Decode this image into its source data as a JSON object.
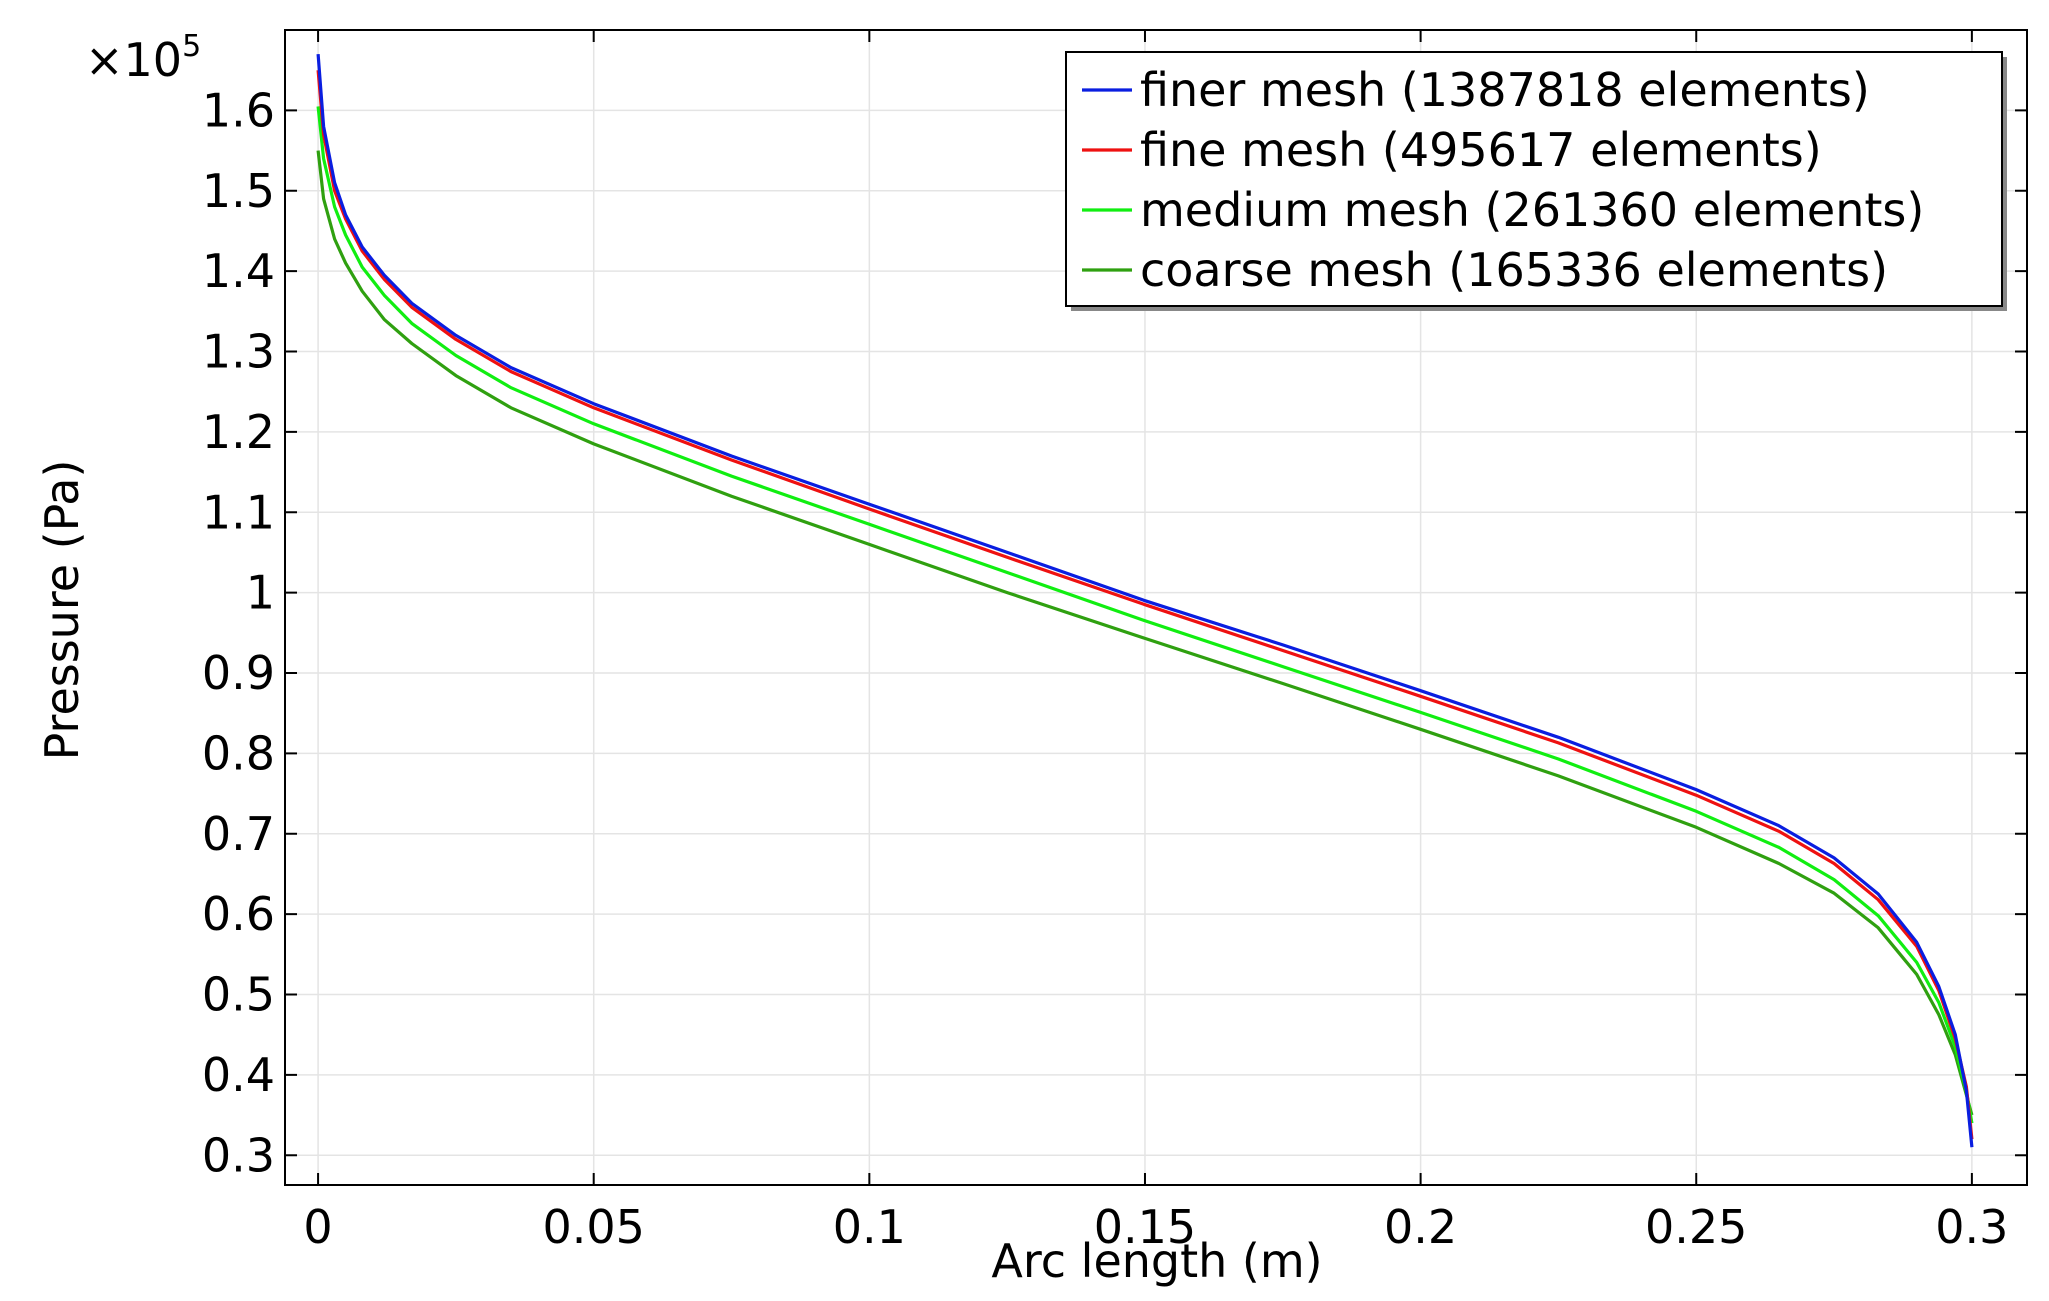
{
  "chart_data": {
    "type": "line",
    "title": "",
    "xlabel": "Arc length (m)",
    "ylabel": "Pressure (Pa)",
    "y_multiplier_base": "×10",
    "y_multiplier_exp": "5",
    "xlim": [
      -0.006,
      0.31
    ],
    "ylim": [
      0.263,
      1.7
    ],
    "x_ticks": [
      0,
      0.05,
      0.1,
      0.15,
      0.2,
      0.25,
      0.3
    ],
    "x_tick_labels": [
      "0",
      "0.05",
      "0.1",
      "0.15",
      "0.2",
      "0.25",
      "0.3"
    ],
    "y_ticks": [
      0.3,
      0.4,
      0.5,
      0.6,
      0.7,
      0.8,
      0.9,
      1.0,
      1.1,
      1.2,
      1.3,
      1.4,
      1.5,
      1.6
    ],
    "y_tick_labels": [
      "0.3",
      "0.4",
      "0.5",
      "0.6",
      "0.7",
      "0.8",
      "0.9",
      "1",
      "1.1",
      "1.2",
      "1.3",
      "1.4",
      "1.5",
      "1.6"
    ],
    "grid": true,
    "legend_position": "top-right",
    "series": [
      {
        "name": "finer mesh (1387818 elements)",
        "color": "#0a1ee0",
        "x": [
          0,
          0.001,
          0.003,
          0.005,
          0.008,
          0.012,
          0.017,
          0.025,
          0.035,
          0.05,
          0.075,
          0.1,
          0.125,
          0.15,
          0.175,
          0.2,
          0.225,
          0.25,
          0.265,
          0.275,
          0.283,
          0.29,
          0.294,
          0.297,
          0.299,
          0.3
        ],
        "y": [
          1.67,
          1.58,
          1.51,
          1.47,
          1.43,
          1.395,
          1.36,
          1.32,
          1.28,
          1.235,
          1.17,
          1.11,
          1.05,
          0.99,
          0.935,
          0.878,
          0.82,
          0.755,
          0.71,
          0.67,
          0.625,
          0.565,
          0.51,
          0.45,
          0.38,
          0.31
        ]
      },
      {
        "name": "fine mesh (495617 elements)",
        "color": "#ee1111",
        "x": [
          0,
          0.001,
          0.003,
          0.005,
          0.008,
          0.012,
          0.017,
          0.025,
          0.035,
          0.05,
          0.075,
          0.1,
          0.125,
          0.15,
          0.175,
          0.2,
          0.225,
          0.25,
          0.265,
          0.275,
          0.283,
          0.29,
          0.294,
          0.297,
          0.299,
          0.3
        ],
        "y": [
          1.65,
          1.57,
          1.5,
          1.465,
          1.425,
          1.39,
          1.355,
          1.315,
          1.275,
          1.23,
          1.165,
          1.104,
          1.044,
          0.985,
          0.928,
          0.871,
          0.813,
          0.748,
          0.703,
          0.663,
          0.618,
          0.56,
          0.505,
          0.445,
          0.385,
          0.32
        ]
      },
      {
        "name": "medium mesh (261360 elements)",
        "color": "#11ee11",
        "x": [
          0,
          0.001,
          0.003,
          0.005,
          0.008,
          0.012,
          0.017,
          0.025,
          0.035,
          0.05,
          0.075,
          0.1,
          0.125,
          0.15,
          0.175,
          0.2,
          0.225,
          0.25,
          0.265,
          0.275,
          0.283,
          0.29,
          0.294,
          0.297,
          0.299,
          0.3
        ],
        "y": [
          1.605,
          1.54,
          1.48,
          1.445,
          1.405,
          1.37,
          1.335,
          1.295,
          1.255,
          1.21,
          1.145,
          1.085,
          1.025,
          0.965,
          0.908,
          0.851,
          0.793,
          0.728,
          0.683,
          0.643,
          0.598,
          0.54,
          0.49,
          0.435,
          0.38,
          0.34
        ]
      },
      {
        "name": "coarse mesh (165336 elements)",
        "color": "#2fa010",
        "x": [
          0,
          0.001,
          0.003,
          0.005,
          0.008,
          0.012,
          0.017,
          0.025,
          0.035,
          0.05,
          0.075,
          0.1,
          0.125,
          0.15,
          0.175,
          0.2,
          0.225,
          0.25,
          0.265,
          0.275,
          0.283,
          0.29,
          0.294,
          0.297,
          0.299,
          0.3
        ],
        "y": [
          1.55,
          1.49,
          1.44,
          1.41,
          1.375,
          1.34,
          1.31,
          1.27,
          1.23,
          1.185,
          1.12,
          1.06,
          1.0,
          0.943,
          0.887,
          0.83,
          0.772,
          0.708,
          0.663,
          0.626,
          0.583,
          0.525,
          0.475,
          0.425,
          0.375,
          0.35
        ]
      }
    ]
  }
}
